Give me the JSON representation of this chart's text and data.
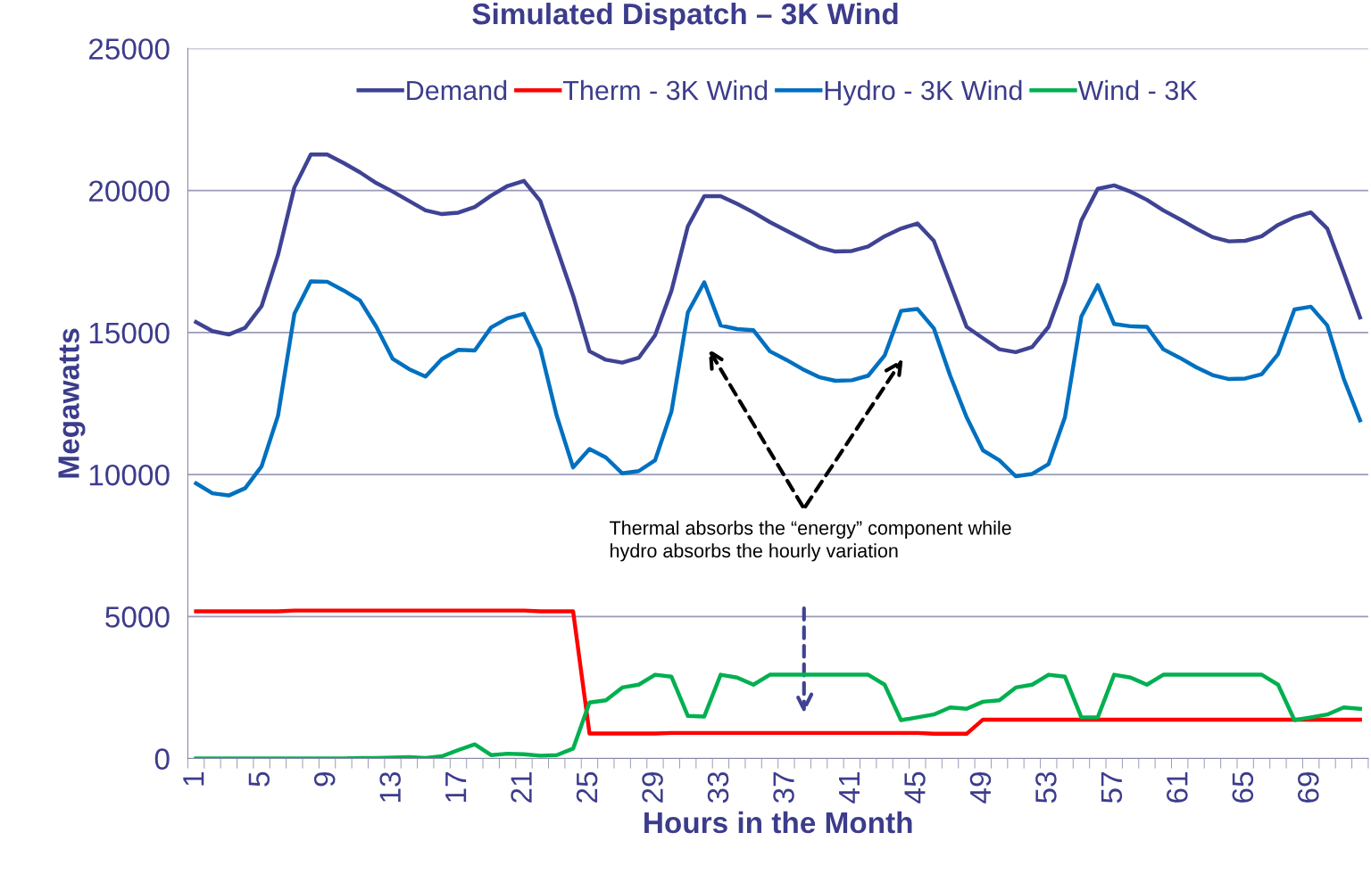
{
  "chart_data": {
    "type": "line",
    "title": "Simulated Dispatch – 3K Wind",
    "xlabel": "Hours in the Month",
    "ylabel": "Megawatts",
    "categories": [
      "1",
      null,
      null,
      null,
      "5",
      null,
      null,
      null,
      "9",
      null,
      null,
      null,
      "13",
      null,
      null,
      null,
      "17",
      null,
      null,
      null,
      "21",
      null,
      null,
      null,
      "25",
      null,
      null,
      null,
      "29",
      null,
      null,
      null,
      "33",
      null,
      null,
      null,
      "37",
      null,
      null,
      null,
      "41",
      null,
      null,
      null,
      "45",
      null,
      null,
      null,
      "49",
      null,
      null,
      null,
      "53",
      null,
      null,
      null,
      "57",
      null,
      null,
      null,
      "61",
      null,
      null,
      null,
      "65",
      null,
      null,
      null,
      "69",
      null,
      null,
      null
    ],
    "series": [
      {
        "name": "Demand",
        "color": "#3f4394",
        "values": [
          15370,
          15050,
          14930,
          15170,
          15930,
          17730,
          20110,
          21270,
          21270,
          20970,
          20640,
          20260,
          19960,
          19630,
          19300,
          19170,
          19220,
          19420,
          19820,
          20160,
          20340,
          19630,
          17980,
          16300,
          14340,
          14040,
          13940,
          14110,
          14900,
          16470,
          18740,
          19800,
          19800,
          19530,
          19230,
          18890,
          18590,
          18290,
          18000,
          17850,
          17870,
          18030,
          18390,
          18660,
          18840,
          18230,
          16720,
          15200,
          14800,
          14410,
          14310,
          14490,
          15200,
          16770,
          18940,
          20060,
          20180,
          19960,
          19670,
          19300,
          18990,
          18660,
          18360,
          18210,
          18230,
          18390,
          18790,
          19060,
          19230,
          18660,
          17120,
          15530
        ]
      },
      {
        "name": "Therm - 3K Wind",
        "color": "#ff0000",
        "values": [
          5180,
          5180,
          5180,
          5180,
          5180,
          5180,
          5210,
          5210,
          5210,
          5210,
          5210,
          5210,
          5210,
          5210,
          5210,
          5210,
          5210,
          5210,
          5210,
          5210,
          5210,
          5180,
          5180,
          5180,
          880,
          880,
          880,
          880,
          880,
          900,
          900,
          900,
          900,
          900,
          900,
          900,
          900,
          900,
          900,
          900,
          900,
          900,
          900,
          900,
          900,
          870,
          870,
          870,
          1370,
          1370,
          1370,
          1370,
          1370,
          1370,
          1370,
          1370,
          1370,
          1370,
          1370,
          1370,
          1370,
          1370,
          1370,
          1370,
          1370,
          1370,
          1370,
          1370,
          1370,
          1370,
          1370,
          1370
        ]
      },
      {
        "name": "Hydro - 3K Wind",
        "color": "#0070c0",
        "values": [
          9690,
          9340,
          9260,
          9520,
          10290,
          12070,
          15660,
          16800,
          16790,
          16480,
          16130,
          15200,
          14070,
          13710,
          13450,
          14070,
          14390,
          14370,
          15180,
          15500,
          15660,
          14440,
          12070,
          10250,
          10900,
          10600,
          10040,
          10120,
          10500,
          12220,
          15710,
          16770,
          15250,
          15120,
          15080,
          14340,
          14040,
          13710,
          13430,
          13300,
          13320,
          13480,
          14190,
          15760,
          15830,
          15150,
          13480,
          12020,
          10850,
          10500,
          9940,
          10020,
          10370,
          12020,
          15560,
          16670,
          15300,
          15220,
          15200,
          14410,
          14110,
          13780,
          13500,
          13360,
          13380,
          13530,
          14240,
          15810,
          15910,
          15250,
          13380,
          11910
        ]
      },
      {
        "name": "Wind - 3K",
        "color": "#00b050",
        "values": [
          0,
          0,
          0,
          0,
          0,
          0,
          0,
          0,
          0,
          0,
          20,
          20,
          30,
          50,
          20,
          80,
          300,
          500,
          120,
          170,
          150,
          100,
          120,
          350,
          1970,
          2050,
          2500,
          2600,
          2950,
          2880,
          1500,
          1480,
          2950,
          2850,
          2600,
          2950,
          2950,
          2950,
          2950,
          2950,
          2950,
          2950,
          2600,
          1350,
          1450,
          1550,
          1800,
          1750,
          2000,
          2050,
          2500,
          2600,
          2950,
          2880,
          1450,
          1450,
          2950,
          2850,
          2600,
          2950,
          2950,
          2950,
          2950,
          2950,
          2950,
          2950,
          2600,
          1350,
          1450,
          1550,
          1800,
          1750
        ]
      }
    ],
    "ylim": [
      0,
      25000
    ],
    "yticks": [
      0,
      5000,
      10000,
      15000,
      20000,
      25000
    ],
    "grid": "y",
    "legend": "top",
    "marker": "none",
    "line_style": "solid",
    "annotations": [
      "Thermal absorbs the “energy” component while\nhydro absorbs the hourly variation"
    ]
  }
}
